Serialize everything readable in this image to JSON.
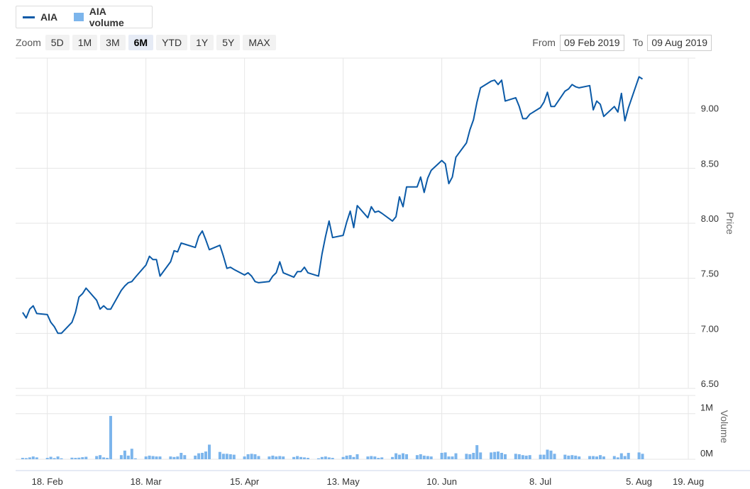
{
  "legend": [
    {
      "label": "AIA",
      "color": "#0b5aa7",
      "kind": "line"
    },
    {
      "label": "AIA volume",
      "color": "#7cb5ec",
      "kind": "column"
    }
  ],
  "zoom": {
    "label": "Zoom",
    "buttons": [
      "5D",
      "1M",
      "3M",
      "6M",
      "YTD",
      "1Y",
      "5Y",
      "MAX"
    ],
    "selected": "6M"
  },
  "range": {
    "from_label": "From",
    "from_value": "09 Feb 2019",
    "to_label": "To",
    "to_value": "09 Aug 2019"
  },
  "chart_data": {
    "type": "line",
    "title": "",
    "x_range": [
      "2019-02-09",
      "2019-08-09"
    ],
    "xticks": [
      {
        "label": "18. Feb",
        "date": "2019-02-18"
      },
      {
        "label": "18. Mar",
        "date": "2019-03-18"
      },
      {
        "label": "15. Apr",
        "date": "2019-04-15"
      },
      {
        "label": "13. May",
        "date": "2019-05-13"
      },
      {
        "label": "10. Jun",
        "date": "2019-06-10"
      },
      {
        "label": "8. Jul",
        "date": "2019-07-08"
      },
      {
        "label": "5. Aug",
        "date": "2019-08-05"
      },
      {
        "label": "19. Aug",
        "date": "2019-08-19"
      }
    ],
    "price_axis": {
      "label": "Price",
      "range": [
        6.5,
        9.5
      ],
      "ticks": [
        6.5,
        7.0,
        7.5,
        8.0,
        8.5,
        9.0
      ],
      "tick_labels": [
        "6.50",
        "7.00",
        "7.50",
        "8.00",
        "8.50",
        "9.00"
      ]
    },
    "volume_axis": {
      "label": "Volume",
      "range": [
        0,
        1400000
      ],
      "ticks": [
        0,
        1000000
      ],
      "tick_labels": [
        "0M",
        "1M"
      ]
    },
    "grid": true,
    "series": [
      {
        "name": "AIA",
        "color": "#0b5aa7",
        "values": [
          [
            "2019-02-11",
            7.19
          ],
          [
            "2019-02-12",
            7.14
          ],
          [
            "2019-02-13",
            7.22
          ],
          [
            "2019-02-14",
            7.25
          ],
          [
            "2019-02-15",
            7.18
          ],
          [
            "2019-02-18",
            7.17
          ],
          [
            "2019-02-19",
            7.1
          ],
          [
            "2019-02-20",
            7.06
          ],
          [
            "2019-02-21",
            7.0
          ],
          [
            "2019-02-22",
            7.0
          ],
          [
            "2019-02-25",
            7.1
          ],
          [
            "2019-02-26",
            7.19
          ],
          [
            "2019-02-27",
            7.33
          ],
          [
            "2019-02-28",
            7.36
          ],
          [
            "2019-03-01",
            7.41
          ],
          [
            "2019-03-04",
            7.3
          ],
          [
            "2019-03-05",
            7.22
          ],
          [
            "2019-03-06",
            7.25
          ],
          [
            "2019-03-07",
            7.22
          ],
          [
            "2019-03-08",
            7.22
          ],
          [
            "2019-03-11",
            7.39
          ],
          [
            "2019-03-12",
            7.43
          ],
          [
            "2019-03-13",
            7.46
          ],
          [
            "2019-03-14",
            7.47
          ],
          [
            "2019-03-15",
            7.51
          ],
          [
            "2019-03-18",
            7.62
          ],
          [
            "2019-03-19",
            7.7
          ],
          [
            "2019-03-20",
            7.67
          ],
          [
            "2019-03-21",
            7.67
          ],
          [
            "2019-03-22",
            7.52
          ],
          [
            "2019-03-25",
            7.65
          ],
          [
            "2019-03-26",
            7.75
          ],
          [
            "2019-03-27",
            7.74
          ],
          [
            "2019-03-28",
            7.82
          ],
          [
            "2019-03-29",
            7.81
          ],
          [
            "2019-04-01",
            7.78
          ],
          [
            "2019-04-02",
            7.88
          ],
          [
            "2019-04-03",
            7.93
          ],
          [
            "2019-04-04",
            7.85
          ],
          [
            "2019-04-05",
            7.76
          ],
          [
            "2019-04-08",
            7.8
          ],
          [
            "2019-04-09",
            7.7
          ],
          [
            "2019-04-10",
            7.59
          ],
          [
            "2019-04-11",
            7.6
          ],
          [
            "2019-04-12",
            7.58
          ],
          [
            "2019-04-15",
            7.53
          ],
          [
            "2019-04-16",
            7.55
          ],
          [
            "2019-04-17",
            7.52
          ],
          [
            "2019-04-18",
            7.47
          ],
          [
            "2019-04-19",
            7.46
          ],
          [
            "2019-04-22",
            7.47
          ],
          [
            "2019-04-23",
            7.52
          ],
          [
            "2019-04-24",
            7.55
          ],
          [
            "2019-04-25",
            7.65
          ],
          [
            "2019-04-26",
            7.55
          ],
          [
            "2019-04-29",
            7.51
          ],
          [
            "2019-04-30",
            7.56
          ],
          [
            "2019-05-01",
            7.56
          ],
          [
            "2019-05-02",
            7.6
          ],
          [
            "2019-05-03",
            7.55
          ],
          [
            "2019-05-06",
            7.52
          ],
          [
            "2019-05-07",
            7.72
          ],
          [
            "2019-05-08",
            7.88
          ],
          [
            "2019-05-09",
            8.02
          ],
          [
            "2019-05-10",
            7.87
          ],
          [
            "2019-05-13",
            7.89
          ],
          [
            "2019-05-14",
            8.01
          ],
          [
            "2019-05-15",
            8.11
          ],
          [
            "2019-05-16",
            7.96
          ],
          [
            "2019-05-17",
            8.16
          ],
          [
            "2019-05-20",
            8.05
          ],
          [
            "2019-05-21",
            8.15
          ],
          [
            "2019-05-22",
            8.1
          ],
          [
            "2019-05-23",
            8.11
          ],
          [
            "2019-05-24",
            8.09
          ],
          [
            "2019-05-27",
            8.02
          ],
          [
            "2019-05-28",
            8.06
          ],
          [
            "2019-05-29",
            8.24
          ],
          [
            "2019-05-30",
            8.15
          ],
          [
            "2019-05-31",
            8.33
          ],
          [
            "2019-06-03",
            8.33
          ],
          [
            "2019-06-04",
            8.42
          ],
          [
            "2019-06-05",
            8.28
          ],
          [
            "2019-06-06",
            8.41
          ],
          [
            "2019-06-07",
            8.48
          ],
          [
            "2019-06-10",
            8.57
          ],
          [
            "2019-06-11",
            8.54
          ],
          [
            "2019-06-12",
            8.36
          ],
          [
            "2019-06-13",
            8.42
          ],
          [
            "2019-06-14",
            8.6
          ],
          [
            "2019-06-17",
            8.73
          ],
          [
            "2019-06-18",
            8.85
          ],
          [
            "2019-06-19",
            8.94
          ],
          [
            "2019-06-20",
            9.1
          ],
          [
            "2019-06-21",
            9.23
          ],
          [
            "2019-06-24",
            9.29
          ],
          [
            "2019-06-25",
            9.3
          ],
          [
            "2019-06-26",
            9.26
          ],
          [
            "2019-06-27",
            9.3
          ],
          [
            "2019-06-28",
            9.11
          ],
          [
            "2019-07-01",
            9.14
          ],
          [
            "2019-07-02",
            9.06
          ],
          [
            "2019-07-03",
            8.95
          ],
          [
            "2019-07-04",
            8.95
          ],
          [
            "2019-07-05",
            8.99
          ],
          [
            "2019-07-08",
            9.05
          ],
          [
            "2019-07-09",
            9.1
          ],
          [
            "2019-07-10",
            9.19
          ],
          [
            "2019-07-11",
            9.06
          ],
          [
            "2019-07-12",
            9.06
          ],
          [
            "2019-07-15",
            9.2
          ],
          [
            "2019-07-16",
            9.22
          ],
          [
            "2019-07-17",
            9.26
          ],
          [
            "2019-07-18",
            9.24
          ],
          [
            "2019-07-19",
            9.23
          ],
          [
            "2019-07-22",
            9.25
          ],
          [
            "2019-07-23",
            9.03
          ],
          [
            "2019-07-24",
            9.11
          ],
          [
            "2019-07-25",
            9.08
          ],
          [
            "2019-07-26",
            8.97
          ],
          [
            "2019-07-29",
            9.06
          ],
          [
            "2019-07-30",
            9.01
          ],
          [
            "2019-07-31",
            9.18
          ],
          [
            "2019-08-01",
            8.93
          ],
          [
            "2019-08-02",
            9.05
          ],
          [
            "2019-08-05",
            9.33
          ],
          [
            "2019-08-06",
            9.31
          ]
        ]
      },
      {
        "name": "AIA volume",
        "type": "column",
        "color": "#7cb5ec",
        "values": [
          [
            "2019-02-11",
            30000
          ],
          [
            "2019-02-12",
            25000
          ],
          [
            "2019-02-13",
            40000
          ],
          [
            "2019-02-14",
            60000
          ],
          [
            "2019-02-15",
            40000
          ],
          [
            "2019-02-18",
            30000
          ],
          [
            "2019-02-19",
            55000
          ],
          [
            "2019-02-20",
            25000
          ],
          [
            "2019-02-21",
            60000
          ],
          [
            "2019-02-22",
            20000
          ],
          [
            "2019-02-25",
            35000
          ],
          [
            "2019-02-26",
            30000
          ],
          [
            "2019-02-27",
            35000
          ],
          [
            "2019-02-28",
            45000
          ],
          [
            "2019-03-01",
            55000
          ],
          [
            "2019-03-04",
            70000
          ],
          [
            "2019-03-05",
            90000
          ],
          [
            "2019-03-06",
            40000
          ],
          [
            "2019-03-07",
            30000
          ],
          [
            "2019-03-08",
            950000
          ],
          [
            "2019-03-11",
            90000
          ],
          [
            "2019-03-12",
            190000
          ],
          [
            "2019-03-13",
            80000
          ],
          [
            "2019-03-14",
            230000
          ],
          [
            "2019-03-15",
            20000
          ],
          [
            "2019-03-18",
            60000
          ],
          [
            "2019-03-19",
            80000
          ],
          [
            "2019-03-20",
            70000
          ],
          [
            "2019-03-21",
            60000
          ],
          [
            "2019-03-22",
            60000
          ],
          [
            "2019-03-25",
            60000
          ],
          [
            "2019-03-26",
            50000
          ],
          [
            "2019-03-27",
            60000
          ],
          [
            "2019-03-28",
            140000
          ],
          [
            "2019-03-29",
            90000
          ],
          [
            "2019-04-01",
            80000
          ],
          [
            "2019-04-02",
            130000
          ],
          [
            "2019-04-03",
            140000
          ],
          [
            "2019-04-04",
            170000
          ],
          [
            "2019-04-05",
            320000
          ],
          [
            "2019-04-08",
            160000
          ],
          [
            "2019-04-09",
            120000
          ],
          [
            "2019-04-10",
            120000
          ],
          [
            "2019-04-11",
            110000
          ],
          [
            "2019-04-12",
            100000
          ],
          [
            "2019-04-15",
            60000
          ],
          [
            "2019-04-16",
            110000
          ],
          [
            "2019-04-17",
            120000
          ],
          [
            "2019-04-18",
            110000
          ],
          [
            "2019-04-19",
            70000
          ],
          [
            "2019-04-22",
            60000
          ],
          [
            "2019-04-23",
            80000
          ],
          [
            "2019-04-24",
            60000
          ],
          [
            "2019-04-25",
            70000
          ],
          [
            "2019-04-26",
            60000
          ],
          [
            "2019-04-29",
            50000
          ],
          [
            "2019-04-30",
            70000
          ],
          [
            "2019-05-01",
            50000
          ],
          [
            "2019-05-02",
            40000
          ],
          [
            "2019-05-03",
            30000
          ],
          [
            "2019-05-06",
            20000
          ],
          [
            "2019-05-07",
            50000
          ],
          [
            "2019-05-08",
            60000
          ],
          [
            "2019-05-09",
            40000
          ],
          [
            "2019-05-10",
            30000
          ],
          [
            "2019-05-13",
            50000
          ],
          [
            "2019-05-14",
            80000
          ],
          [
            "2019-05-15",
            90000
          ],
          [
            "2019-05-16",
            50000
          ],
          [
            "2019-05-17",
            110000
          ],
          [
            "2019-05-20",
            60000
          ],
          [
            "2019-05-21",
            70000
          ],
          [
            "2019-05-22",
            60000
          ],
          [
            "2019-05-23",
            30000
          ],
          [
            "2019-05-24",
            40000
          ],
          [
            "2019-05-27",
            50000
          ],
          [
            "2019-05-28",
            130000
          ],
          [
            "2019-05-29",
            100000
          ],
          [
            "2019-05-30",
            130000
          ],
          [
            "2019-05-31",
            110000
          ],
          [
            "2019-06-03",
            90000
          ],
          [
            "2019-06-04",
            110000
          ],
          [
            "2019-06-05",
            80000
          ],
          [
            "2019-06-06",
            70000
          ],
          [
            "2019-06-07",
            60000
          ],
          [
            "2019-06-10",
            140000
          ],
          [
            "2019-06-11",
            150000
          ],
          [
            "2019-06-12",
            60000
          ],
          [
            "2019-06-13",
            60000
          ],
          [
            "2019-06-14",
            130000
          ],
          [
            "2019-06-17",
            120000
          ],
          [
            "2019-06-18",
            110000
          ],
          [
            "2019-06-19",
            140000
          ],
          [
            "2019-06-20",
            310000
          ],
          [
            "2019-06-21",
            150000
          ],
          [
            "2019-06-24",
            150000
          ],
          [
            "2019-06-25",
            160000
          ],
          [
            "2019-06-26",
            170000
          ],
          [
            "2019-06-27",
            140000
          ],
          [
            "2019-06-28",
            110000
          ],
          [
            "2019-07-01",
            120000
          ],
          [
            "2019-07-02",
            110000
          ],
          [
            "2019-07-03",
            90000
          ],
          [
            "2019-07-04",
            80000
          ],
          [
            "2019-07-05",
            90000
          ],
          [
            "2019-07-08",
            100000
          ],
          [
            "2019-07-09",
            100000
          ],
          [
            "2019-07-10",
            210000
          ],
          [
            "2019-07-11",
            190000
          ],
          [
            "2019-07-12",
            120000
          ],
          [
            "2019-07-15",
            100000
          ],
          [
            "2019-07-16",
            80000
          ],
          [
            "2019-07-17",
            90000
          ],
          [
            "2019-07-18",
            80000
          ],
          [
            "2019-07-19",
            60000
          ],
          [
            "2019-07-22",
            70000
          ],
          [
            "2019-07-23",
            70000
          ],
          [
            "2019-07-24",
            60000
          ],
          [
            "2019-07-25",
            90000
          ],
          [
            "2019-07-26",
            60000
          ],
          [
            "2019-07-29",
            70000
          ],
          [
            "2019-07-30",
            40000
          ],
          [
            "2019-07-31",
            130000
          ],
          [
            "2019-08-01",
            70000
          ],
          [
            "2019-08-02",
            140000
          ],
          [
            "2019-08-05",
            150000
          ],
          [
            "2019-08-06",
            120000
          ]
        ]
      }
    ]
  }
}
